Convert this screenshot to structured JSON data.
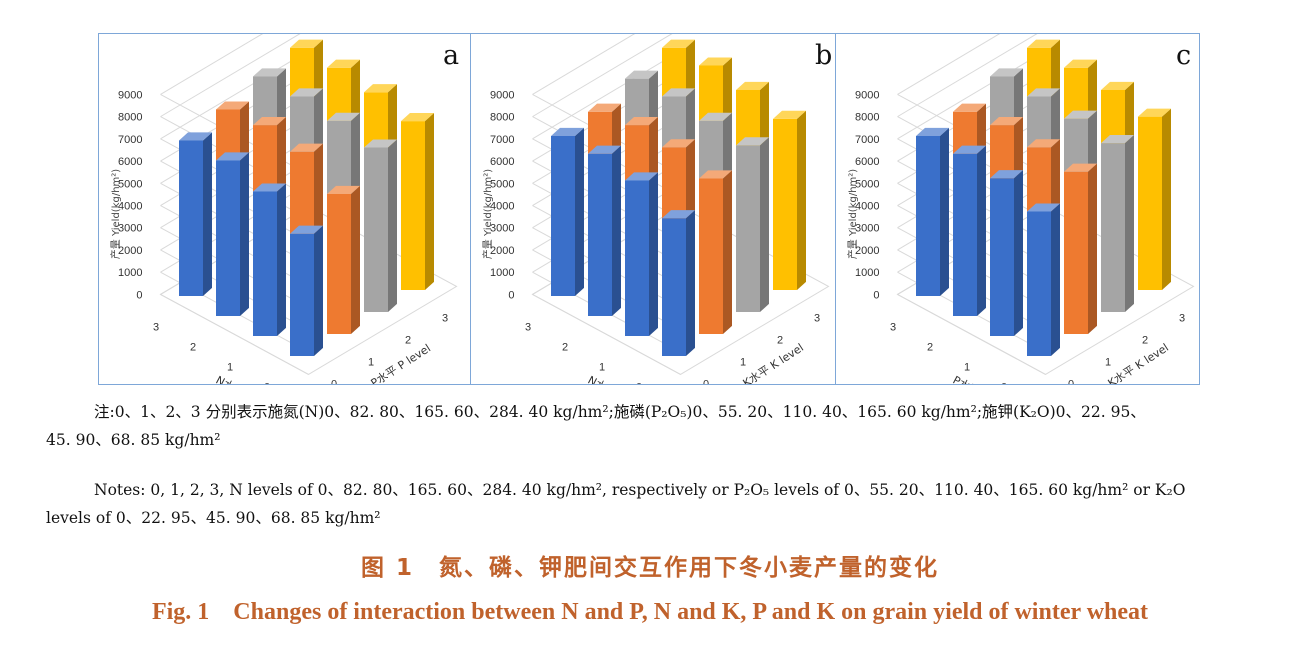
{
  "panels": [
    {
      "letter": "a",
      "ylabel": "产量 Yield(kg/hm²)",
      "xlabel": "N水平 N level",
      "zlabel": "P水平 P level"
    },
    {
      "letter": "b",
      "ylabel": "产量 Yield(kg/hm²)",
      "xlabel": "N水平 N level",
      "zlabel": "K水平 K level"
    },
    {
      "letter": "c",
      "ylabel": "产量 Yield(kg/hm²)",
      "xlabel": "P水平 P level",
      "zlabel": "K水平 K level"
    }
  ],
  "series_colors": [
    "#3a6fc9",
    "#ee7a30",
    "#a5a5a5",
    "#ffc000"
  ],
  "chart_data": [
    {
      "type": "bar",
      "title": "a",
      "ylabel": "产量 Yield(kg/hm²)",
      "xlabel": "N水平 N level",
      "zlabel": "P水平 P level",
      "ylim": [
        0,
        9000
      ],
      "yticks": [
        0,
        1000,
        2000,
        3000,
        4000,
        5000,
        6000,
        7000,
        8000,
        9000
      ],
      "categories": [
        "3",
        "2",
        "1",
        "0"
      ],
      "series": [
        {
          "name": "0",
          "values": [
            7000,
            7000,
            6500,
            5500
          ]
        },
        {
          "name": "1",
          "values": [
            7400,
            7600,
            7300,
            6300
          ]
        },
        {
          "name": "2",
          "values": [
            7900,
            7900,
            7700,
            7400
          ]
        },
        {
          "name": "3",
          "values": [
            8200,
            8200,
            8000,
            7600
          ]
        }
      ]
    },
    {
      "type": "bar",
      "title": "b",
      "ylabel": "产量 Yield(kg/hm²)",
      "xlabel": "N水平 N level",
      "zlabel": "K水平 K level",
      "ylim": [
        0,
        9000
      ],
      "yticks": [
        0,
        1000,
        2000,
        3000,
        4000,
        5000,
        6000,
        7000,
        8000,
        9000
      ],
      "categories": [
        "3",
        "2",
        "1",
        "0"
      ],
      "series": [
        {
          "name": "0",
          "values": [
            7200,
            7300,
            7000,
            6200
          ]
        },
        {
          "name": "1",
          "values": [
            7300,
            7600,
            7500,
            7000
          ]
        },
        {
          "name": "2",
          "values": [
            7800,
            7900,
            7700,
            7500
          ]
        },
        {
          "name": "3",
          "values": [
            8200,
            8300,
            8100,
            7700
          ]
        }
      ]
    },
    {
      "type": "bar",
      "title": "c",
      "ylabel": "产量 Yield(kg/hm²)",
      "xlabel": "P水平 P level",
      "zlabel": "K水平 K level",
      "ylim": [
        0,
        9000
      ],
      "yticks": [
        0,
        1000,
        2000,
        3000,
        4000,
        5000,
        6000,
        7000,
        8000,
        9000
      ],
      "categories": [
        "3",
        "2",
        "1",
        "0"
      ],
      "series": [
        {
          "name": "0",
          "values": [
            7200,
            7300,
            7100,
            6500
          ]
        },
        {
          "name": "1",
          "values": [
            7300,
            7600,
            7500,
            7300
          ]
        },
        {
          "name": "2",
          "values": [
            7900,
            7900,
            7800,
            7600
          ]
        },
        {
          "name": "3",
          "values": [
            8200,
            8200,
            8100,
            7800
          ]
        }
      ]
    }
  ],
  "notes_cn_1": "注:0、1、2、3 分别表示施氮(N)0、82. 80、165. 60、284. 40 kg/hm²;施磷(P₂O₅)0、55. 20、110. 40、165. 60 kg/hm²;施钾(K₂O)0、22. 95、",
  "notes_cn_2": "45. 90、68. 85 kg/hm²",
  "notes_en_1": "Notes: 0, 1, 2, 3, N levels of 0、82. 80、165. 60、284. 40 kg/hm², respectively or P₂O₅ levels of 0、55. 20、110. 40、165. 60 kg/hm² or K₂O",
  "notes_en_2": "levels of 0、22. 95、45. 90、68. 85 kg/hm²",
  "fig_title_cn": "图 1　氮、磷、钾肥间交互作用下冬小麦产量的变化",
  "fig_title_en": "Fig. 1　Changes of interaction between N and P, N and K, P and K on grain yield of winter wheat"
}
